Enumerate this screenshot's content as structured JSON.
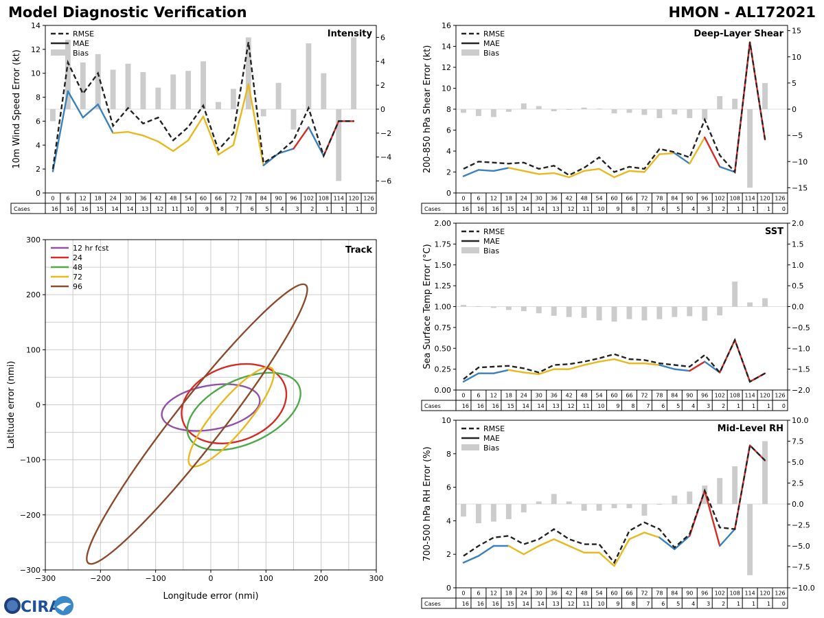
{
  "page": {
    "title": "Model Diagnostic Verification",
    "storm": "HMON - AL172021",
    "logo_text": "CIRA"
  },
  "colors": {
    "rmse": "#222222",
    "mae": "#222222",
    "bias": "#cccccc",
    "seg_blue": "#3a80bb",
    "seg_yellow": "#e8b91f",
    "seg_red": "#d62a25",
    "track_12": "#9350a8",
    "track_24": "#d62a25",
    "track_48": "#4daa48",
    "track_72": "#e8b91f",
    "track_96": "#8b4a2b",
    "grid": "#cccccc"
  },
  "chart_data": [
    {
      "id": "intensity",
      "type": "line",
      "title": "Intensity",
      "ylabel": "10m Wind Speed Error (kt)",
      "ylim": [
        0,
        14
      ],
      "yticks": [
        0,
        2,
        4,
        6,
        8,
        10,
        12,
        14
      ],
      "bias_lim": [
        -7,
        7
      ],
      "bias_ticks": [
        -6,
        -4,
        -2,
        0,
        2,
        4,
        6
      ],
      "legend": [
        "RMSE",
        "MAE",
        "Bias"
      ],
      "hours": [
        "0",
        "6",
        "12",
        "18",
        "24",
        "30",
        "36",
        "42",
        "48",
        "54",
        "60",
        "66",
        "72",
        "78",
        "84",
        "90",
        "96",
        "102",
        "108",
        "114",
        "120",
        "126"
      ],
      "cases_label": "Cases",
      "cases": [
        "16",
        "16",
        "16",
        "15",
        "14",
        "14",
        "13",
        "12",
        "11",
        "10",
        "9",
        "8",
        "7",
        "6",
        "5",
        "4",
        "3",
        "2",
        "1",
        "1",
        "1",
        "0"
      ],
      "rmse": [
        2.0,
        10.9,
        8.3,
        10.0,
        5.6,
        7.1,
        5.8,
        6.3,
        4.4,
        5.5,
        7.3,
        3.6,
        5.0,
        12.6,
        2.5,
        3.3,
        4.4,
        7.1,
        3.1,
        6.0,
        6.0,
        null
      ],
      "mae": [
        1.8,
        8.5,
        6.3,
        7.4,
        5.0,
        5.1,
        4.8,
        4.3,
        3.5,
        4.4,
        6.4,
        3.2,
        4.0,
        9.1,
        2.3,
        3.3,
        3.7,
        5.5,
        3.1,
        6.0,
        6.0,
        null
      ],
      "bias": [
        -1.0,
        5.8,
        3.9,
        4.6,
        3.3,
        3.8,
        3.1,
        1.8,
        2.9,
        3.2,
        4.0,
        0.6,
        1.7,
        6.0,
        -0.6,
        2.2,
        -1.7,
        5.5,
        3.0,
        -6.0,
        6.0,
        null
      ],
      "mae_color": [
        "blue",
        "blue",
        "blue",
        "blue",
        "yellow",
        "yellow",
        "yellow",
        "yellow",
        "yellow",
        "yellow",
        "yellow",
        "yellow",
        "yellow",
        "yellow",
        "blue",
        "blue",
        "red",
        "blue",
        "red",
        "red",
        "red"
      ]
    },
    {
      "id": "shear",
      "type": "line",
      "title": "Deep-Layer Shear",
      "ylabel": "200-850 hPa Shear Error (kt)",
      "ylim": [
        0,
        16
      ],
      "yticks": [
        0,
        2,
        4,
        6,
        8,
        10,
        12,
        14,
        16
      ],
      "bias_lim": [
        -16,
        16
      ],
      "bias_ticks": [
        -15,
        -10,
        -5,
        0,
        5,
        10,
        15
      ],
      "legend": [
        "RMSE",
        "MAE",
        "Bias"
      ],
      "hours": [
        "0",
        "6",
        "12",
        "18",
        "24",
        "30",
        "36",
        "42",
        "48",
        "54",
        "60",
        "66",
        "72",
        "78",
        "84",
        "90",
        "96",
        "102",
        "108",
        "114",
        "120",
        "126"
      ],
      "cases_label": "Cases",
      "cases": [
        "16",
        "16",
        "16",
        "15",
        "14",
        "14",
        "13",
        "12",
        "11",
        "10",
        "9",
        "8",
        "7",
        "6",
        "5",
        "4",
        "3",
        "2",
        "1",
        "1",
        "1",
        "0"
      ],
      "rmse": [
        2.3,
        3.0,
        2.9,
        2.8,
        2.9,
        2.3,
        2.6,
        1.7,
        2.4,
        3.4,
        2.0,
        2.5,
        2.3,
        4.2,
        3.9,
        3.4,
        7.0,
        3.6,
        2.0,
        14.4,
        5.1,
        null
      ],
      "mae": [
        1.6,
        2.2,
        2.1,
        2.4,
        2.1,
        1.8,
        1.9,
        1.5,
        2.1,
        2.3,
        1.5,
        2.1,
        2.0,
        3.7,
        3.8,
        2.8,
        5.3,
        2.5,
        2.0,
        14.4,
        5.1,
        null
      ],
      "bias": [
        -0.7,
        -1.3,
        -1.5,
        -0.5,
        1.1,
        0.6,
        -0.4,
        -0.1,
        0.3,
        0.1,
        -0.8,
        -0.7,
        -1.1,
        -1.7,
        -1.0,
        -1.7,
        -2.0,
        2.5,
        2.0,
        -15.0,
        5.0,
        null
      ],
      "mae_color": [
        "blue",
        "blue",
        "blue",
        "yellow",
        "yellow",
        "yellow",
        "yellow",
        "yellow",
        "yellow",
        "yellow",
        "yellow",
        "yellow",
        "yellow",
        "yellow",
        "blue",
        "yellow",
        "red",
        "blue",
        "red",
        "red",
        "red"
      ]
    },
    {
      "id": "sst",
      "type": "line",
      "title": "SST",
      "ylabel": "Sea Surface Temp Error (°C)",
      "ylim": [
        0,
        2
      ],
      "yticks": [
        "0.00",
        "0.25",
        "0.50",
        "0.75",
        "1.00",
        "1.25",
        "1.50",
        "1.75",
        "2.00"
      ],
      "bias_lim": [
        -2,
        2
      ],
      "bias_ticks": [
        "-2.0",
        "-1.5",
        "-1.0",
        "-0.5",
        "0.0",
        "0.5",
        "1.0",
        "1.5",
        "2.0"
      ],
      "legend": [
        "RMSE",
        "MAE",
        "Bias"
      ],
      "hours": [
        "0",
        "6",
        "12",
        "18",
        "24",
        "30",
        "36",
        "42",
        "48",
        "54",
        "60",
        "66",
        "72",
        "78",
        "84",
        "90",
        "96",
        "102",
        "108",
        "114",
        "120",
        "126"
      ],
      "cases_label": "Cases",
      "cases": [
        "16",
        "16",
        "16",
        "15",
        "14",
        "14",
        "13",
        "12",
        "11",
        "10",
        "9",
        "8",
        "7",
        "6",
        "5",
        "4",
        "3",
        "2",
        "1",
        "1",
        "1",
        "0"
      ],
      "rmse": [
        0.13,
        0.27,
        0.28,
        0.29,
        0.26,
        0.21,
        0.3,
        0.31,
        0.34,
        0.38,
        0.43,
        0.37,
        0.36,
        0.32,
        0.3,
        0.28,
        0.42,
        0.21,
        0.6,
        0.1,
        0.2,
        null
      ],
      "mae": [
        0.1,
        0.2,
        0.2,
        0.24,
        0.21,
        0.19,
        0.25,
        0.25,
        0.3,
        0.34,
        0.37,
        0.32,
        0.32,
        0.3,
        0.25,
        0.23,
        0.34,
        0.21,
        0.6,
        0.1,
        0.2,
        null
      ],
      "bias": [
        0.04,
        0.01,
        -0.03,
        -0.08,
        -0.11,
        -0.16,
        -0.22,
        -0.25,
        -0.27,
        -0.33,
        -0.36,
        -0.3,
        -0.33,
        -0.3,
        -0.25,
        -0.23,
        -0.34,
        -0.21,
        0.6,
        0.1,
        0.2,
        null
      ],
      "mae_color": [
        "blue",
        "blue",
        "blue",
        "yellow",
        "yellow",
        "yellow",
        "yellow",
        "yellow",
        "yellow",
        "yellow",
        "yellow",
        "yellow",
        "yellow",
        "blue",
        "blue",
        "red",
        "blue",
        "red",
        "red",
        "red",
        "red"
      ]
    },
    {
      "id": "rh",
      "type": "line",
      "title": "Mid-Level RH",
      "ylabel": "700-500 hPa RH Error (%)",
      "ylim": [
        0,
        10
      ],
      "yticks": [
        0,
        2,
        4,
        6,
        8,
        10
      ],
      "bias_lim": [
        -10,
        10
      ],
      "bias_ticks": [
        "-10.0",
        "-7.5",
        "-5.0",
        "-2.5",
        "0.0",
        "2.5",
        "5.0",
        "7.5",
        "10.0"
      ],
      "legend": [
        "RMSE",
        "MAE",
        "Bias"
      ],
      "hours": [
        "0",
        "6",
        "12",
        "18",
        "24",
        "30",
        "36",
        "42",
        "48",
        "54",
        "60",
        "66",
        "72",
        "78",
        "84",
        "90",
        "96",
        "102",
        "108",
        "114",
        "120",
        "126"
      ],
      "cases_label": "Cases",
      "cases": [
        "16",
        "16",
        "16",
        "15",
        "14",
        "14",
        "13",
        "12",
        "11",
        "10",
        "9",
        "8",
        "7",
        "6",
        "5",
        "4",
        "3",
        "2",
        "1",
        "1",
        "1",
        "0"
      ],
      "rmse": [
        1.9,
        2.5,
        3.0,
        3.1,
        2.6,
        2.9,
        3.5,
        2.9,
        2.6,
        2.6,
        1.5,
        3.4,
        3.9,
        3.5,
        2.4,
        3.2,
        5.8,
        3.6,
        3.5,
        8.5,
        7.6,
        null
      ],
      "mae": [
        1.5,
        1.9,
        2.5,
        2.5,
        2.0,
        2.5,
        2.9,
        2.5,
        2.1,
        2.1,
        1.3,
        2.9,
        3.3,
        3.0,
        2.3,
        3.1,
        5.8,
        2.5,
        3.5,
        8.5,
        7.6,
        null
      ],
      "bias": [
        -1.5,
        -2.3,
        -2.1,
        -1.8,
        -1.0,
        0.3,
        1.2,
        0.3,
        -0.8,
        -0.8,
        -0.5,
        -0.5,
        -1.4,
        0.0,
        1.0,
        1.5,
        2.2,
        3.1,
        4.5,
        -8.5,
        7.5,
        null
      ],
      "mae_color": [
        "blue",
        "blue",
        "blue",
        "yellow",
        "yellow",
        "yellow",
        "yellow",
        "yellow",
        "yellow",
        "yellow",
        "yellow",
        "yellow",
        "yellow",
        "blue",
        "blue",
        "red",
        "red",
        "blue",
        "red",
        "red",
        "red"
      ]
    },
    {
      "id": "track",
      "type": "scatter",
      "title": "Track",
      "xlabel": "Longitude error (nmi)",
      "ylabel": "Latitude error (nmi)",
      "xlim": [
        -300,
        300
      ],
      "ylim": [
        -300,
        300
      ],
      "xticks": [
        "−300",
        "−200",
        "−100",
        "0",
        "100",
        "200",
        "300"
      ],
      "yticks": [
        "−300",
        "−200",
        "−100",
        "0",
        "100",
        "200",
        "300"
      ],
      "grid_step": 50,
      "ellipses": [
        {
          "label": "12 hr fcst",
          "color": "track_12",
          "cx": 0,
          "cy": -5,
          "rx": 90,
          "ry": 40,
          "angle": 10
        },
        {
          "label": "24",
          "color": "track_24",
          "cx": 42,
          "cy": 2,
          "rx": 98,
          "ry": 68,
          "angle": 20
        },
        {
          "label": "48",
          "color": "track_48",
          "cx": 60,
          "cy": -12,
          "rx": 110,
          "ry": 58,
          "angle": 25
        },
        {
          "label": "72",
          "color": "track_72",
          "cx": 37,
          "cy": -22,
          "rx": 115,
          "ry": 30,
          "angle": 50
        },
        {
          "label": "96",
          "color": "track_96",
          "cx": -25,
          "cy": -35,
          "rx": 320,
          "ry": 43,
          "angle": 52
        }
      ]
    }
  ]
}
